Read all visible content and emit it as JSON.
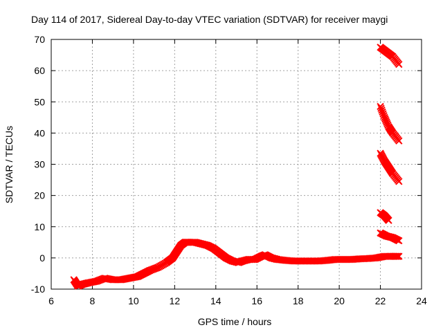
{
  "chart_data": {
    "type": "scatter",
    "title": "Day 114 of 2017, Sidereal Day-to-day VTEC variation (SDTVAR) for receiver maygi",
    "xlabel": "GPS time / hours",
    "ylabel": "SDTVAR / TECUs",
    "xlim": [
      6,
      24
    ],
    "ylim": [
      -10,
      70
    ],
    "xticks": [
      6,
      8,
      10,
      12,
      14,
      16,
      18,
      20,
      22,
      24
    ],
    "yticks": [
      -10,
      0,
      10,
      20,
      30,
      40,
      50,
      60,
      70
    ],
    "grid": true,
    "legend": "none",
    "series_color": "#ff0000",
    "series": [
      {
        "name": "main",
        "x": [
          7.1,
          7.3,
          7.5,
          7.8,
          8.2,
          8.6,
          9.0,
          9.4,
          9.8,
          10.2,
          10.5,
          10.8,
          11.2,
          11.6,
          11.9,
          12.1,
          12.3,
          12.5,
          12.7,
          13.0,
          13.3,
          13.6,
          13.9,
          14.2,
          14.5,
          14.8,
          15.1,
          15.3,
          15.6,
          15.9,
          16.2,
          16.4,
          16.7,
          17.0,
          17.4,
          17.8,
          18.2,
          18.6,
          19.0,
          19.4,
          19.8,
          20.2,
          20.6,
          21.0,
          21.4,
          21.8,
          22.2,
          22.6,
          22.9
        ],
        "y": [
          -7,
          -9,
          -8.5,
          -8,
          -7.5,
          -6.5,
          -7,
          -7,
          -6.5,
          -6,
          -5,
          -4,
          -3,
          -1.5,
          0,
          2,
          4,
          5,
          5,
          5,
          4.5,
          4,
          3,
          1.5,
          0,
          -1,
          -1.5,
          -1,
          -0.5,
          -0.5,
          0.5,
          1,
          0,
          -0.5,
          -0.8,
          -1,
          -1,
          -1,
          -1,
          -0.8,
          -0.5,
          -0.5,
          -0.5,
          -0.3,
          -0.2,
          0,
          0.5,
          0.5,
          0.5
        ]
      },
      {
        "name": "arc-1",
        "x": [
          22.0,
          22.3,
          22.6,
          22.9
        ],
        "y": [
          67.5,
          66,
          64.5,
          62
        ]
      },
      {
        "name": "arc-2",
        "x": [
          22.0,
          22.2,
          22.4,
          22.6,
          22.9
        ],
        "y": [
          48.5,
          45,
          42,
          40,
          37.5
        ]
      },
      {
        "name": "arc-3",
        "x": [
          22.0,
          22.2,
          22.4,
          22.6,
          22.9
        ],
        "y": [
          33.5,
          31,
          29,
          27,
          24.5
        ]
      },
      {
        "name": "arc-4",
        "x": [
          22.0,
          22.2,
          22.4
        ],
        "y": [
          14.5,
          13.5,
          12
        ]
      },
      {
        "name": "arc-5",
        "x": [
          22.0,
          22.3,
          22.6,
          22.9
        ],
        "y": [
          8,
          7,
          6.5,
          5.5
        ]
      }
    ]
  }
}
